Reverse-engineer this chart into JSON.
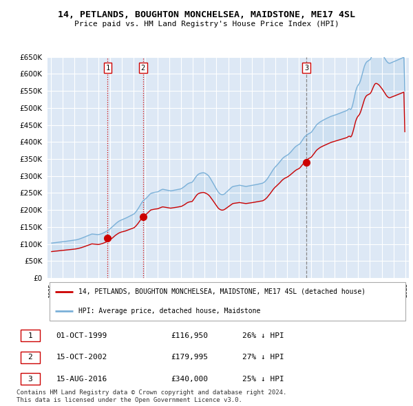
{
  "title_line1": "14, PETLANDS, BOUGHTON MONCHELSEA, MAIDSTONE, ME17 4SL",
  "title_line2": "Price paid vs. HM Land Registry's House Price Index (HPI)",
  "background_color": "#ffffff",
  "plot_bg_color": "#dde8f5",
  "grid_color": "#ffffff",
  "sale_color": "#cc0000",
  "hpi_color": "#7ab0d8",
  "sale_label": "14, PETLANDS, BOUGHTON MONCHELSEA, MAIDSTONE, ME17 4SL (detached house)",
  "hpi_label": "HPI: Average price, detached house, Maidstone",
  "ylim_min": 0,
  "ylim_max": 650000,
  "ytick_step": 50000,
  "vline_color_red": "#cc0000",
  "vline_color_grey": "#888888",
  "sales": [
    {
      "date": "1999-10-01",
      "price": 116950,
      "label": "1",
      "vline": "red"
    },
    {
      "date": "2002-10-15",
      "price": 179995,
      "label": "2",
      "vline": "red"
    },
    {
      "date": "2016-08-15",
      "price": 340000,
      "label": "3",
      "vline": "grey"
    }
  ],
  "sale_table": [
    {
      "num": "1",
      "date": "01-OCT-1999",
      "price": "£116,950",
      "pct": "26% ↓ HPI"
    },
    {
      "num": "2",
      "date": "15-OCT-2002",
      "price": "£179,995",
      "pct": "27% ↓ HPI"
    },
    {
      "num": "3",
      "date": "15-AUG-2016",
      "price": "£340,000",
      "pct": "25% ↓ HPI"
    }
  ],
  "footer": "Contains HM Land Registry data © Crown copyright and database right 2024.\nThis data is licensed under the Open Government Licence v3.0.",
  "hpi_values_monthly": [
    103000,
    103300,
    103700,
    104000,
    104400,
    104700,
    105100,
    105400,
    105800,
    106200,
    106500,
    106900,
    107200,
    107600,
    108000,
    108300,
    108700,
    109100,
    109400,
    109800,
    110200,
    110600,
    111000,
    111400,
    111800,
    112400,
    113100,
    113800,
    114700,
    115700,
    116700,
    117800,
    118900,
    120100,
    121200,
    122300,
    123500,
    124700,
    125900,
    127200,
    128400,
    129600,
    129400,
    129100,
    128800,
    128500,
    128200,
    127900,
    128000,
    128800,
    129500,
    130600,
    131700,
    133200,
    134700,
    136200,
    137700,
    139300,
    141300,
    143300,
    146000,
    148700,
    151400,
    154200,
    157000,
    159700,
    162000,
    164200,
    166300,
    168100,
    169500,
    170800,
    172000,
    173200,
    174300,
    175500,
    177000,
    178500,
    180000,
    181500,
    183000,
    184500,
    186000,
    187400,
    188900,
    192200,
    195700,
    199800,
    204100,
    208900,
    213800,
    218800,
    223200,
    226800,
    229500,
    232000,
    234200,
    237100,
    240200,
    243500,
    246700,
    249000,
    249800,
    250600,
    251300,
    252100,
    252500,
    252900,
    253500,
    255300,
    257000,
    258700,
    260000,
    261000,
    260400,
    259800,
    259100,
    258400,
    257900,
    257400,
    256800,
    256300,
    256800,
    257300,
    257900,
    258400,
    259000,
    259600,
    260200,
    260700,
    261300,
    261900,
    262900,
    264900,
    266900,
    269000,
    271500,
    274200,
    276300,
    278000,
    279300,
    280200,
    281000,
    281800,
    286000,
    290200,
    294400,
    298700,
    302000,
    304800,
    306500,
    307800,
    308600,
    309300,
    309600,
    309400,
    308100,
    306400,
    304600,
    302100,
    298800,
    294700,
    289800,
    284900,
    279900,
    274800,
    269600,
    264400,
    259200,
    254500,
    250800,
    248000,
    246200,
    245200,
    245300,
    246100,
    248000,
    250600,
    253200,
    255900,
    258600,
    261300,
    264000,
    266700,
    268700,
    269600,
    270100,
    270600,
    271200,
    271800,
    272300,
    272900,
    272300,
    271800,
    271300,
    270700,
    270100,
    269600,
    269500,
    270000,
    270600,
    271100,
    271600,
    272200,
    272700,
    273300,
    273800,
    274300,
    274800,
    275400,
    276000,
    276600,
    277200,
    277700,
    278600,
    279600,
    281700,
    284000,
    287200,
    290600,
    294800,
    299200,
    303700,
    308400,
    313100,
    317800,
    321900,
    325400,
    328500,
    331700,
    334900,
    338200,
    341800,
    345600,
    349000,
    352200,
    354800,
    357000,
    358700,
    360300,
    362100,
    364400,
    367200,
    370200,
    373500,
    376900,
    380400,
    383600,
    386300,
    388500,
    390200,
    391800,
    393800,
    397200,
    401400,
    405700,
    410100,
    414500,
    417300,
    419500,
    421600,
    423700,
    425200,
    426700,
    428500,
    432500,
    436600,
    440700,
    444900,
    449100,
    452200,
    454500,
    456800,
    459000,
    460700,
    462500,
    464100,
    465600,
    467100,
    468500,
    469900,
    471300,
    472700,
    474000,
    475300,
    476200,
    477100,
    478000,
    479000,
    480000,
    481100,
    482200,
    483300,
    484400,
    485500,
    486700,
    487800,
    488900,
    490100,
    491200,
    492300,
    494600,
    497300,
    497500,
    495000,
    499600,
    509300,
    521700,
    535700,
    549200,
    558300,
    564700,
    568600,
    573300,
    581100,
    591200,
    602100,
    613200,
    623200,
    629900,
    634500,
    636900,
    638600,
    640400,
    643000,
    648700,
    656400,
    663800,
    670000,
    674000,
    675000,
    674100,
    672300,
    669500,
    665700,
    661900,
    657600,
    653100,
    648400,
    643700,
    639100,
    635400,
    632600,
    631100,
    631300,
    632500,
    633700,
    635000,
    636200,
    637500,
    638700,
    640000,
    641200,
    642500,
    643800,
    645000,
    646300,
    647600,
    648800,
    550000
  ],
  "sale_price_values_monthly": [
    78000,
    78300,
    78500,
    78800,
    79100,
    79400,
    79700,
    80000,
    80300,
    80600,
    80900,
    81200,
    81500,
    81800,
    82100,
    82400,
    82700,
    83000,
    83300,
    83600,
    84000,
    84300,
    84700,
    85000,
    85400,
    85900,
    86400,
    87000,
    87700,
    88500,
    89300,
    90200,
    91200,
    92200,
    93200,
    94200,
    95200,
    96300,
    97400,
    98500,
    99600,
    100600,
    100300,
    100000,
    99700,
    99400,
    99100,
    98800,
    98900,
    99500,
    100200,
    101000,
    101900,
    103000,
    104200,
    105400,
    106600,
    107900,
    109500,
    111200,
    113500,
    115900,
    118300,
    120800,
    123400,
    125900,
    127900,
    129900,
    131700,
    133200,
    134300,
    135400,
    136100,
    136900,
    137600,
    138400,
    139500,
    140600,
    141700,
    142800,
    143900,
    145000,
    146000,
    147000,
    148200,
    151000,
    153900,
    157400,
    161000,
    165200,
    169400,
    173600,
    177500,
    180600,
    182900,
    185200,
    187100,
    189600,
    192300,
    195200,
    198100,
    200300,
    200900,
    201500,
    202100,
    202700,
    203000,
    203300,
    203800,
    205000,
    206200,
    207400,
    208500,
    209300,
    208800,
    208300,
    207700,
    207200,
    206800,
    206400,
    205900,
    205500,
    205900,
    206400,
    206800,
    207200,
    207700,
    208100,
    208600,
    209000,
    209500,
    210000,
    210800,
    212400,
    214000,
    215600,
    217500,
    219800,
    221500,
    222800,
    223700,
    224300,
    224900,
    225400,
    229600,
    233700,
    237900,
    242000,
    245400,
    247800,
    249100,
    250100,
    250700,
    251300,
    251600,
    251400,
    250300,
    248900,
    247500,
    245500,
    242900,
    239700,
    235800,
    231900,
    227800,
    223600,
    219400,
    215100,
    210800,
    207000,
    204100,
    201900,
    200600,
    199800,
    199900,
    200600,
    202100,
    204200,
    206400,
    208500,
    210600,
    212800,
    214900,
    217000,
    218700,
    219500,
    219900,
    220400,
    220800,
    221200,
    221600,
    222000,
    221500,
    221100,
    220600,
    220100,
    219700,
    219200,
    219200,
    219600,
    220000,
    220500,
    220900,
    221400,
    221800,
    222300,
    222800,
    223200,
    223700,
    224100,
    224700,
    225200,
    225800,
    226200,
    226900,
    227700,
    229600,
    231400,
    234000,
    236800,
    240400,
    244000,
    247600,
    251500,
    255600,
    259700,
    263300,
    266400,
    269000,
    271800,
    274600,
    277400,
    280200,
    283400,
    286500,
    289200,
    291400,
    293300,
    294700,
    296100,
    297600,
    299600,
    301800,
    304200,
    306700,
    309200,
    311700,
    314200,
    316400,
    318400,
    319800,
    321100,
    323100,
    326000,
    329500,
    333200,
    337200,
    341200,
    344100,
    346300,
    348500,
    350700,
    352200,
    353700,
    355500,
    359200,
    363000,
    366800,
    370700,
    374600,
    377500,
    379600,
    381700,
    383900,
    385400,
    386900,
    388300,
    389600,
    391000,
    392300,
    393600,
    394900,
    396200,
    397500,
    398700,
    399600,
    400500,
    401300,
    402200,
    403100,
    404000,
    404800,
    405700,
    406600,
    407500,
    408300,
    409200,
    410100,
    411000,
    411900,
    412800,
    414700,
    416600,
    416800,
    414700,
    418400,
    427100,
    437600,
    449300,
    460700,
    468500,
    474000,
    477500,
    481500,
    488100,
    496700,
    506400,
    516300,
    525400,
    531600,
    535800,
    537900,
    539200,
    540600,
    543100,
    547700,
    554600,
    561500,
    567500,
    571400,
    572000,
    570900,
    569000,
    566500,
    562900,
    559300,
    555400,
    551200,
    546800,
    542100,
    537600,
    534000,
    531400,
    529900,
    530100,
    531200,
    532400,
    533500,
    534700,
    535800,
    537000,
    538200,
    539300,
    540500,
    541600,
    542800,
    544000,
    545100,
    546300,
    430000
  ]
}
